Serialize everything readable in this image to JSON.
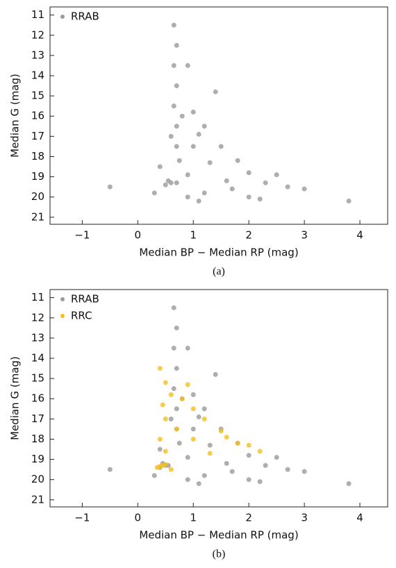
{
  "chart_data": [
    {
      "type": "scatter",
      "caption": "(a)",
      "x_label": "Median BP − Median RP (mag)",
      "y_label": "Median G (mag)",
      "xlim": [
        -1.58,
        4.5
      ],
      "ylim": [
        21.35,
        10.6
      ],
      "xticks": [
        {
          "value": -1,
          "label": "−1"
        },
        0,
        1,
        2,
        3,
        4
      ],
      "yticks": [
        11,
        12,
        13,
        14,
        15,
        16,
        17,
        18,
        19,
        20,
        21
      ],
      "legend": "upper-left",
      "series": [
        {
          "name": "RRAB",
          "color": "#9a9a9a",
          "x": [
            0.65,
            0.7,
            0.65,
            0.7,
            0.65,
            0.7,
            0.7,
            0.75,
            0.6,
            0.5,
            0.7,
            0.55,
            1.0,
            1.2,
            1.0,
            1.5,
            1.3,
            1.8,
            2.0,
            1.6,
            2.3,
            2.7,
            3.0,
            1.2,
            0.9,
            2.0,
            0.4,
            0.3,
            1.4,
            2.5,
            0.9,
            1.1,
            -0.5,
            3.8,
            0.8,
            0.6,
            1.7,
            2.2,
            0.9,
            1.1
          ],
          "y": [
            11.5,
            12.5,
            13.5,
            14.5,
            15.5,
            16.5,
            17.5,
            18.2,
            19.3,
            19.4,
            19.3,
            19.2,
            15.8,
            16.5,
            17.5,
            17.5,
            18.3,
            18.2,
            18.8,
            19.2,
            19.3,
            19.5,
            19.6,
            19.8,
            20.0,
            20.0,
            18.5,
            19.8,
            14.8,
            18.9,
            13.5,
            20.2,
            19.5,
            20.2,
            16.0,
            17.0,
            19.6,
            20.1,
            18.9,
            16.9
          ]
        }
      ]
    },
    {
      "type": "scatter",
      "caption": "(b)",
      "x_label": "Median BP − Median RP (mag)",
      "y_label": "Median G (mag)",
      "xlim": [
        -1.58,
        4.5
      ],
      "ylim": [
        21.35,
        10.6
      ],
      "xticks": [
        {
          "value": -1,
          "label": "−1"
        },
        0,
        1,
        2,
        3,
        4
      ],
      "yticks": [
        11,
        12,
        13,
        14,
        15,
        16,
        17,
        18,
        19,
        20,
        21
      ],
      "legend": "upper-left",
      "series": [
        {
          "name": "RRAB",
          "color": "#9a9a9a",
          "x": [
            0.65,
            0.7,
            0.65,
            0.7,
            0.65,
            0.7,
            0.7,
            0.75,
            0.5,
            0.4,
            0.55,
            0.45,
            1.0,
            1.2,
            1.0,
            1.5,
            1.3,
            1.8,
            2.0,
            1.6,
            2.3,
            2.7,
            3.0,
            1.2,
            0.9,
            2.0,
            0.4,
            0.3,
            1.4,
            2.5,
            0.9,
            1.1,
            -0.5,
            3.8,
            0.8,
            0.6,
            1.7,
            2.2,
            0.9,
            1.1
          ],
          "y": [
            11.5,
            12.5,
            13.5,
            14.5,
            15.5,
            16.5,
            17.5,
            18.2,
            19.3,
            19.4,
            19.3,
            19.2,
            15.8,
            16.5,
            17.5,
            17.5,
            18.3,
            18.2,
            18.8,
            19.2,
            19.3,
            19.5,
            19.6,
            19.8,
            20.0,
            20.0,
            18.5,
            19.8,
            14.8,
            18.9,
            13.5,
            20.2,
            19.5,
            20.2,
            16.0,
            17.0,
            19.6,
            20.1,
            18.9,
            16.9
          ]
        },
        {
          "name": "RRC",
          "color": "#f2c01e",
          "x": [
            0.4,
            0.5,
            0.6,
            0.45,
            0.8,
            1.0,
            0.5,
            1.2,
            0.7,
            1.5,
            0.4,
            1.0,
            1.8,
            2.2,
            0.5,
            0.45,
            0.4,
            0.5,
            0.35,
            1.3,
            0.9,
            1.6,
            0.6,
            2.0
          ],
          "y": [
            14.5,
            15.2,
            15.8,
            16.3,
            16.0,
            16.5,
            17.0,
            17.0,
            17.5,
            17.6,
            18.0,
            18.0,
            18.2,
            18.6,
            18.6,
            19.3,
            19.35,
            19.25,
            19.4,
            18.7,
            15.3,
            17.9,
            19.5,
            18.3
          ]
        }
      ]
    }
  ]
}
